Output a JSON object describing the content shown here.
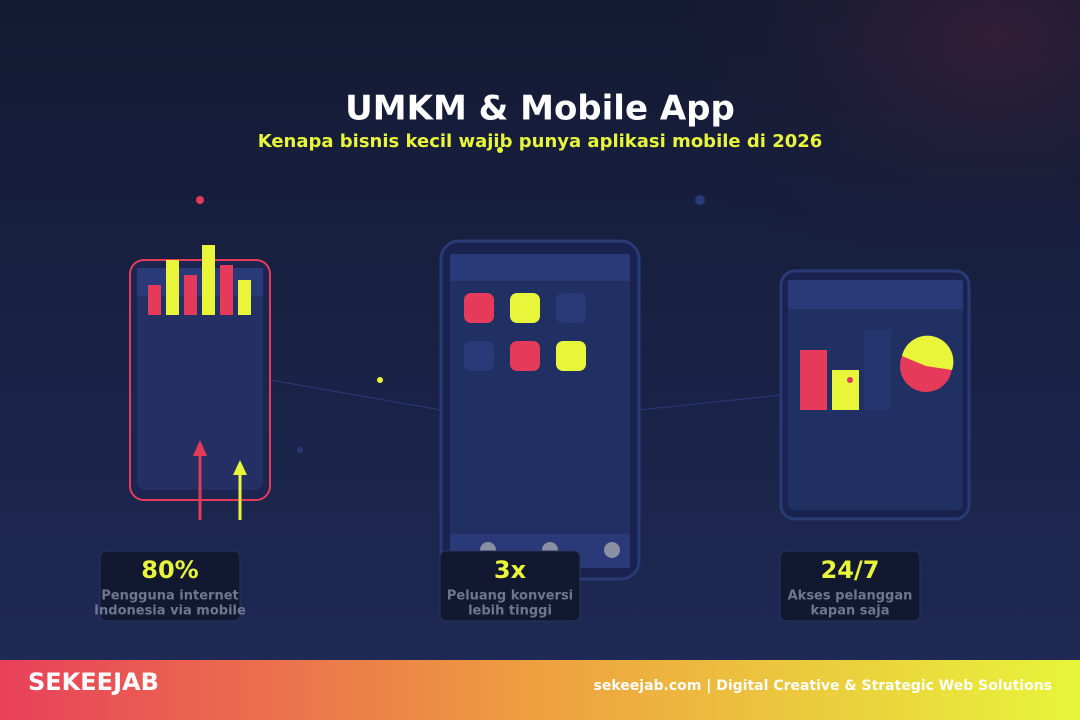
{
  "header": {
    "title": "UMKM & Mobile App",
    "subtitle": "Kenapa bisnis kecil wajib punya aplikasi mobile di 2026"
  },
  "stats": [
    {
      "value": "80%",
      "lines": [
        "Pengguna internet",
        "Indonesia via mobile"
      ]
    },
    {
      "value": "3x",
      "lines": [
        "Peluang konversi",
        "lebih tinggi"
      ]
    },
    {
      "value": "24/7",
      "lines": [
        "Akses pelanggan",
        "kapan saja"
      ]
    }
  ],
  "footer": {
    "brand": "SEKEEJAB",
    "text": "sekeejab.com | Digital Creative & Strategic Web Solutions"
  }
}
